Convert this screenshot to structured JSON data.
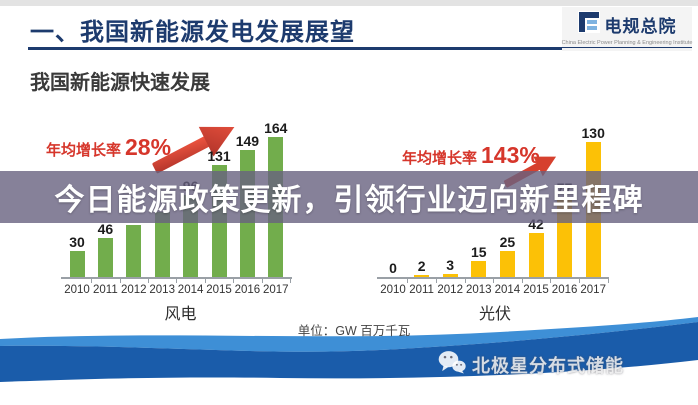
{
  "header": {
    "title": "一、我国新能源发电发展展望",
    "accent_color": "#1d3b6e",
    "logo": {
      "name": "电规总院",
      "tagline": "China Electric Power Planning & Engineering Institute"
    }
  },
  "section_heading": "我国新能源快速发展",
  "overlay_banner": {
    "text": "今日能源政策更新，引领行业迈向新里程碑",
    "bg_color": "rgba(104,98,128,0.8)",
    "text_color": "#ffffff"
  },
  "unit_note": "单位：GW 百万千瓦",
  "watermark": {
    "text": "北极星分布式储能",
    "icon": "wechat-icon"
  },
  "chart_data": [
    {
      "type": "bar",
      "title": "风电",
      "growth_rate_label": "年均增长率",
      "growth_rate_value": "28%",
      "growth_color": "#d6362b",
      "categories": [
        "2010",
        "2011",
        "2012",
        "2013",
        "2014",
        "2015",
        "2016",
        "2017"
      ],
      "values": [
        30,
        46,
        61,
        76,
        96,
        131,
        149,
        164
      ],
      "value_labels": [
        "30",
        "46",
        "",
        "",
        "96",
        "131",
        "149",
        "164"
      ],
      "bar_color": "#72ad4c",
      "ylim": [
        0,
        170
      ],
      "xlabel": "",
      "ylabel": "",
      "grid": false,
      "legend": false
    },
    {
      "type": "bar",
      "title": "光伏",
      "growth_rate_label": "年均增长率",
      "growth_rate_value": "143%",
      "growth_color": "#d6362b",
      "categories": [
        "2010",
        "2011",
        "2012",
        "2013",
        "2014",
        "2015",
        "2016",
        "2017"
      ],
      "values": [
        0,
        2,
        3,
        15,
        25,
        42,
        77,
        130
      ],
      "value_labels": [
        "0",
        "2",
        "3",
        "15",
        "25",
        "42",
        "77",
        "130"
      ],
      "bar_color": "#fcc106",
      "ylim": [
        0,
        135
      ],
      "xlabel": "",
      "ylabel": "",
      "grid": false,
      "legend": false
    }
  ]
}
